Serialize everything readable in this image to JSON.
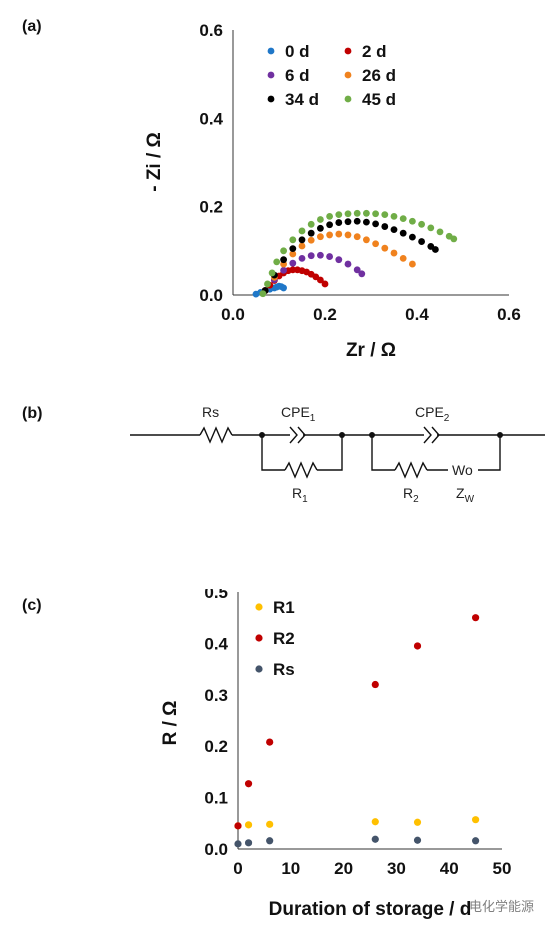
{
  "panel_labels": [
    "(a)",
    "(b)",
    "(c)"
  ],
  "watermark": "电化学能源",
  "chart_data": [
    {
      "type": "scatter",
      "title": "",
      "xlabel": "Zr / Ω",
      "ylabel": "- Zi / Ω",
      "xlim": [
        0,
        0.6
      ],
      "ylim": [
        0,
        0.6
      ],
      "xticks": [
        "0.0",
        "0.2",
        "0.4",
        "0.6"
      ],
      "yticks": [
        "0.0",
        "0.2",
        "0.4",
        "0.6"
      ],
      "legend_position": "top",
      "series": [
        {
          "name": "0 d",
          "color": "#1f77c8",
          "x": [
            0.05,
            0.06,
            0.07,
            0.08,
            0.09,
            0.095,
            0.1,
            0.105,
            0.11
          ],
          "y": [
            0.002,
            0.006,
            0.01,
            0.013,
            0.016,
            0.018,
            0.02,
            0.019,
            0.016
          ]
        },
        {
          "name": "2 d",
          "color": "#c00000",
          "x": [
            0.07,
            0.08,
            0.09,
            0.1,
            0.11,
            0.12,
            0.13,
            0.14,
            0.15,
            0.16,
            0.17,
            0.18,
            0.19,
            0.2
          ],
          "y": [
            0.01,
            0.022,
            0.033,
            0.043,
            0.05,
            0.055,
            0.057,
            0.057,
            0.055,
            0.052,
            0.047,
            0.041,
            0.034,
            0.025
          ]
        },
        {
          "name": "6 d",
          "color": "#7030a0",
          "x": [
            0.07,
            0.09,
            0.11,
            0.13,
            0.15,
            0.17,
            0.19,
            0.21,
            0.23,
            0.25,
            0.27,
            0.28
          ],
          "y": [
            0.01,
            0.035,
            0.056,
            0.072,
            0.083,
            0.089,
            0.09,
            0.087,
            0.08,
            0.07,
            0.057,
            0.048
          ]
        },
        {
          "name": "26 d",
          "color": "#f0821e",
          "x": [
            0.07,
            0.09,
            0.11,
            0.13,
            0.15,
            0.17,
            0.19,
            0.21,
            0.23,
            0.25,
            0.27,
            0.29,
            0.31,
            0.33,
            0.35,
            0.37,
            0.39
          ],
          "y": [
            0.01,
            0.04,
            0.07,
            0.093,
            0.111,
            0.124,
            0.132,
            0.136,
            0.138,
            0.136,
            0.132,
            0.125,
            0.116,
            0.106,
            0.095,
            0.083,
            0.07
          ]
        },
        {
          "name": "34 d",
          "color": "#000000",
          "x": [
            0.07,
            0.09,
            0.11,
            0.13,
            0.15,
            0.17,
            0.19,
            0.21,
            0.23,
            0.25,
            0.27,
            0.29,
            0.31,
            0.33,
            0.35,
            0.37,
            0.39,
            0.41,
            0.43,
            0.44
          ],
          "y": [
            0.01,
            0.045,
            0.08,
            0.105,
            0.125,
            0.14,
            0.151,
            0.159,
            0.164,
            0.166,
            0.167,
            0.165,
            0.161,
            0.155,
            0.148,
            0.14,
            0.131,
            0.121,
            0.11,
            0.103
          ]
        },
        {
          "name": "45 d",
          "color": "#70ad47",
          "x": [
            0.065,
            0.075,
            0.085,
            0.095,
            0.11,
            0.13,
            0.15,
            0.17,
            0.19,
            0.21,
            0.23,
            0.25,
            0.27,
            0.29,
            0.31,
            0.33,
            0.35,
            0.37,
            0.39,
            0.41,
            0.43,
            0.45,
            0.47,
            0.48
          ],
          "y": [
            0.003,
            0.025,
            0.05,
            0.075,
            0.1,
            0.125,
            0.145,
            0.16,
            0.171,
            0.178,
            0.182,
            0.184,
            0.185,
            0.185,
            0.184,
            0.182,
            0.178,
            0.173,
            0.167,
            0.16,
            0.152,
            0.143,
            0.133,
            0.127
          ]
        }
      ]
    },
    {
      "type": "scatter",
      "title": "",
      "xlabel": "Duration of storage / d",
      "ylabel": "R / Ω",
      "xlim": [
        0,
        50
      ],
      "ylim": [
        0,
        0.5
      ],
      "xticks": [
        "0",
        "10",
        "20",
        "30",
        "40",
        "50"
      ],
      "yticks": [
        "0.0",
        "0.1",
        "0.2",
        "0.3",
        "0.4",
        "0.5"
      ],
      "legend_position": "top-left",
      "series": [
        {
          "name": "R1",
          "color": "#ffc000",
          "x": [
            0,
            2,
            6,
            26,
            34,
            45
          ],
          "y": [
            0.045,
            0.047,
            0.048,
            0.053,
            0.052,
            0.057
          ]
        },
        {
          "name": "R2",
          "color": "#c00000",
          "x": [
            0,
            2,
            6,
            26,
            34,
            45
          ],
          "y": [
            0.045,
            0.127,
            0.208,
            0.32,
            0.395,
            0.45
          ]
        },
        {
          "name": "Rs",
          "color": "#44546a",
          "x": [
            0,
            2,
            6,
            26,
            34,
            45
          ],
          "y": [
            0.01,
            0.012,
            0.016,
            0.019,
            0.017,
            0.016
          ]
        }
      ]
    }
  ],
  "circuit": {
    "labels": {
      "rs": "Rs",
      "cpe1": "CPE",
      "cpe1_sub": "1",
      "r1": "R",
      "r1_sub": "1",
      "cpe2": "CPE",
      "cpe2_sub": "2",
      "r2": "R",
      "r2_sub": "2",
      "wo": "Wo",
      "zw": "Z",
      "zw_sub": "W"
    }
  }
}
